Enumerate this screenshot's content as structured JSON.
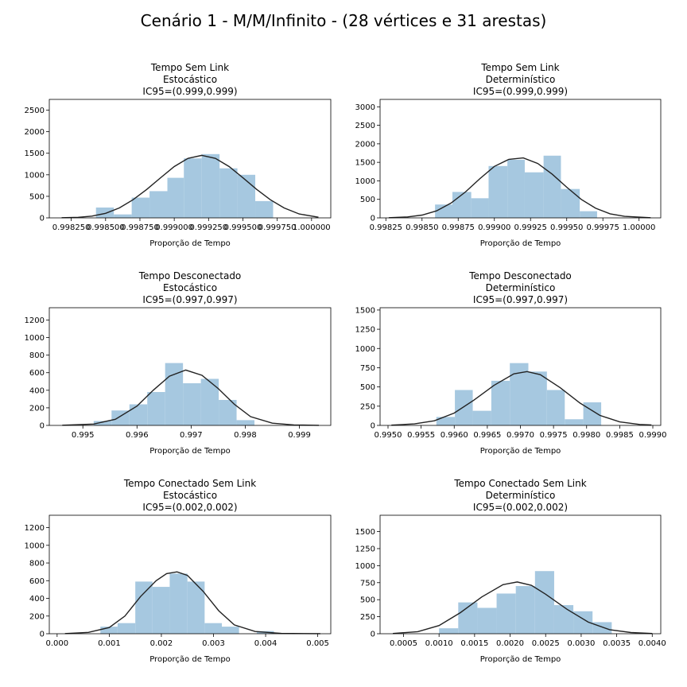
{
  "figure": {
    "suptitle": "Cenário 1 - M/M/Infinito - (28 vértices e 31 arestas)"
  },
  "colors": {
    "hist_fill": "#a6c8e0",
    "kde_line": "#222222",
    "axis": "#000000",
    "background": "#ffffff"
  },
  "chart_data": [
    {
      "type": "bar",
      "title_lines": [
        "Tempo Sem Link",
        "Estocástico",
        "IC95=(0.999,0.999)"
      ],
      "xlabel": "Proporção de Tempo",
      "ylabel": "",
      "xlim": [
        0.99809,
        1.00014
      ],
      "ylim": [
        0,
        2750
      ],
      "xticks": [
        0.99825,
        0.9985,
        0.99875,
        0.999,
        0.99925,
        0.9995,
        0.99975,
        1.0
      ],
      "xtick_labels": [
        "0.998250",
        "0.998500",
        "0.998750",
        "0.999000",
        "0.999250",
        "0.999500",
        "0.999750",
        "1.000000"
      ],
      "yticks": [
        0,
        500,
        1000,
        1500,
        2000,
        2500
      ],
      "ytick_labels": [
        "0",
        "500",
        "1000",
        "1500",
        "2000",
        "2500"
      ],
      "bin_edges": [
        0.99843,
        0.99856,
        0.99869,
        0.99882,
        0.99895,
        0.99907,
        0.9992,
        0.99933,
        0.99946,
        0.99959,
        0.99972
      ],
      "values": [
        240,
        80,
        470,
        620,
        930,
        1380,
        1480,
        1150,
        1000,
        390
      ],
      "kde_x": [
        0.99818,
        0.9983,
        0.9984,
        0.9985,
        0.9986,
        0.9987,
        0.9988,
        0.9989,
        0.999,
        0.9991,
        0.9992,
        0.9993,
        0.9994,
        0.9995,
        0.9996,
        0.9997,
        0.9998,
        0.99991,
        1.00005
      ],
      "kde_y": [
        3,
        12,
        40,
        105,
        230,
        420,
        660,
        930,
        1190,
        1380,
        1450,
        1380,
        1190,
        930,
        660,
        420,
        230,
        90,
        15
      ]
    },
    {
      "type": "bar",
      "title_lines": [
        "Tempo Sem Link",
        "Determinístico",
        "IC95=(0.999,0.999)"
      ],
      "xlabel": "Proporção de Tempo",
      "ylabel": "",
      "xlim": [
        0.99821,
        1.00015
      ],
      "ylim": [
        0,
        3200
      ],
      "xticks": [
        0.99825,
        0.9985,
        0.99875,
        0.999,
        0.99925,
        0.9995,
        0.99975,
        1.0
      ],
      "xtick_labels": [
        "0.99825",
        "0.99850",
        "0.99875",
        "0.99900",
        "0.99925",
        "0.99950",
        "0.99975",
        "1.00000"
      ],
      "yticks": [
        0,
        500,
        1000,
        1500,
        2000,
        2500,
        3000
      ],
      "ytick_labels": [
        "0",
        "500",
        "1000",
        "1500",
        "2000",
        "2500",
        "3000"
      ],
      "bin_edges": [
        0.99859,
        0.99871,
        0.99884,
        0.99896,
        0.99909,
        0.99921,
        0.99934,
        0.99946,
        0.99959,
        0.99971
      ],
      "values": [
        360,
        700,
        530,
        1400,
        1570,
        1230,
        1680,
        780,
        180
      ],
      "kde_x": [
        0.99827,
        0.9984,
        0.9985,
        0.9986,
        0.9987,
        0.9988,
        0.9989,
        0.999,
        0.9991,
        0.9992,
        0.9993,
        0.9994,
        0.9995,
        0.9996,
        0.9997,
        0.9998,
        0.9999,
        1.00008
      ],
      "kde_y": [
        5,
        25,
        75,
        190,
        400,
        700,
        1060,
        1390,
        1580,
        1620,
        1470,
        1180,
        830,
        500,
        260,
        110,
        40,
        5
      ]
    },
    {
      "type": "bar",
      "title_lines": [
        "Tempo Desconectado",
        "Estocástico",
        "IC95=(0.997,0.997)"
      ],
      "xlabel": "Proporção de Tempo",
      "ylabel": "",
      "xlim": [
        0.99438,
        0.99958
      ],
      "ylim": [
        0,
        1340
      ],
      "xticks": [
        0.995,
        0.996,
        0.997,
        0.998,
        0.999
      ],
      "xtick_labels": [
        "0.995",
        "0.996",
        "0.997",
        "0.998",
        "0.999"
      ],
      "yticks": [
        0,
        200,
        400,
        600,
        800,
        1000,
        1200
      ],
      "ytick_labels": [
        "0",
        "200",
        "400",
        "600",
        "800",
        "1000",
        "1200"
      ],
      "bin_edges": [
        0.9952,
        0.99553,
        0.99586,
        0.99619,
        0.99652,
        0.99685,
        0.99718,
        0.99751,
        0.99784,
        0.99817,
        0.9985
      ],
      "values": [
        50,
        170,
        240,
        380,
        710,
        480,
        530,
        290,
        60,
        0
      ],
      "kde_x": [
        0.99462,
        0.9952,
        0.9956,
        0.996,
        0.9963,
        0.9966,
        0.9969,
        0.9972,
        0.9975,
        0.9978,
        0.9981,
        0.9985,
        0.9989,
        0.99936
      ],
      "kde_y": [
        2,
        15,
        70,
        220,
        400,
        560,
        630,
        570,
        420,
        240,
        100,
        25,
        5,
        1
      ]
    },
    {
      "type": "bar",
      "title_lines": [
        "Tempo Desconectado",
        "Determinístico",
        "IC95=(0.997,0.997)"
      ],
      "xlabel": "Proporção de Tempo",
      "ylabel": "",
      "xlim": [
        0.99488,
        0.99912
      ],
      "ylim": [
        0,
        1530
      ],
      "xticks": [
        0.995,
        0.9955,
        0.996,
        0.9965,
        0.997,
        0.9975,
        0.998,
        0.9985,
        0.999
      ],
      "xtick_labels": [
        "0.9950",
        "0.9955",
        "0.9960",
        "0.9965",
        "0.9970",
        "0.9975",
        "0.9980",
        "0.9985",
        "0.9990"
      ],
      "yticks": [
        0,
        250,
        500,
        750,
        1000,
        1250,
        1500
      ],
      "ytick_labels": [
        "0",
        "250",
        "500",
        "750",
        "1000",
        "1250",
        "1500"
      ],
      "bin_edges": [
        0.99573,
        0.99601,
        0.99628,
        0.99656,
        0.99684,
        0.99712,
        0.9974,
        0.99767,
        0.99795,
        0.99822
      ],
      "values": [
        110,
        460,
        190,
        580,
        810,
        700,
        460,
        80,
        300
      ],
      "kde_x": [
        0.99505,
        0.9954,
        0.9957,
        0.996,
        0.9963,
        0.9966,
        0.9969,
        0.9971,
        0.9973,
        0.9976,
        0.9979,
        0.9982,
        0.9985,
        0.9988,
        0.99898
      ],
      "kde_y": [
        3,
        20,
        60,
        160,
        330,
        520,
        670,
        700,
        660,
        490,
        290,
        130,
        45,
        12,
        5
      ]
    },
    {
      "type": "bar",
      "title_lines": [
        "Tempo Conectado Sem Link",
        "Estocástico",
        "IC95=(0.002,0.002)"
      ],
      "xlabel": "Proporção de Tempo",
      "ylabel": "",
      "xlim": [
        -0.00015,
        0.00525
      ],
      "ylim": [
        0,
        1340
      ],
      "xticks": [
        0.0,
        0.001,
        0.002,
        0.003,
        0.004,
        0.005
      ],
      "xtick_labels": [
        "0.000",
        "0.001",
        "0.002",
        "0.003",
        "0.004",
        "0.005"
      ],
      "yticks": [
        0,
        200,
        400,
        600,
        800,
        1000,
        1200
      ],
      "ytick_labels": [
        "0",
        "200",
        "400",
        "600",
        "800",
        "1000",
        "1200"
      ],
      "bin_edges": [
        0.00083,
        0.00116,
        0.0015,
        0.00183,
        0.00216,
        0.0025,
        0.00283,
        0.00316,
        0.00349,
        0.00383,
        0.00416
      ],
      "values": [
        80,
        120,
        590,
        530,
        680,
        590,
        120,
        80,
        0,
        30
      ],
      "kde_x": [
        0.00015,
        0.0006,
        0.001,
        0.0013,
        0.0016,
        0.0019,
        0.0021,
        0.0023,
        0.0025,
        0.0028,
        0.0031,
        0.0034,
        0.0038,
        0.0043,
        0.00505
      ],
      "kde_y": [
        2,
        15,
        70,
        200,
        420,
        600,
        680,
        700,
        660,
        480,
        260,
        100,
        25,
        4,
        1
      ]
    },
    {
      "type": "bar",
      "title_lines": [
        "Tempo Conectado Sem Link",
        "Determinístico",
        "IC95=(0.002,0.002)"
      ],
      "xlabel": "Proporção de Tempo",
      "ylabel": "",
      "xlim": [
        0.00017,
        0.00412
      ],
      "ylim": [
        0,
        1740
      ],
      "xticks": [
        0.0005,
        0.001,
        0.0015,
        0.002,
        0.0025,
        0.003,
        0.0035,
        0.004
      ],
      "xtick_labels": [
        "0.0005",
        "0.0010",
        "0.0015",
        "0.0020",
        "0.0025",
        "0.0030",
        "0.0035",
        "0.0040"
      ],
      "yticks": [
        0,
        250,
        500,
        750,
        1000,
        1250,
        1500
      ],
      "ytick_labels": [
        "0",
        "250",
        "500",
        "750",
        "1000",
        "1250",
        "1500"
      ],
      "bin_edges": [
        0.001,
        0.00127,
        0.00154,
        0.00181,
        0.00208,
        0.00235,
        0.00262,
        0.00289,
        0.00316,
        0.00343
      ],
      "values": [
        80,
        460,
        380,
        590,
        700,
        920,
        420,
        330,
        170
      ],
      "kde_x": [
        0.00035,
        0.0007,
        0.001,
        0.0013,
        0.0016,
        0.0019,
        0.0021,
        0.0023,
        0.0025,
        0.0028,
        0.0031,
        0.0034,
        0.0037,
        0.004
      ],
      "kde_y": [
        4,
        30,
        120,
        310,
        540,
        720,
        760,
        710,
        580,
        360,
        170,
        60,
        18,
        4
      ]
    }
  ]
}
